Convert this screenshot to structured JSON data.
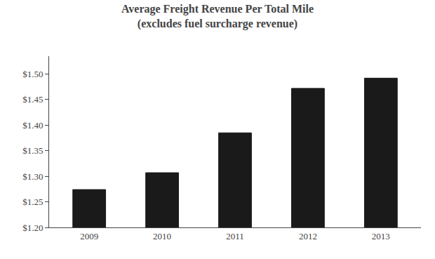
{
  "chart_data": {
    "type": "bar",
    "title": "Average Freight Revenue Per Total Mile",
    "subtitle": "(excludes fuel surcharge revenue)",
    "categories": [
      "2009",
      "2010",
      "2011",
      "2012",
      "2013"
    ],
    "values": [
      1.274,
      1.307,
      1.385,
      1.472,
      1.492
    ],
    "color": "#1a1a1a",
    "ylim": [
      1.2,
      1.535
    ],
    "yticks": [
      {
        "value": 1.2,
        "label": "$1.20"
      },
      {
        "value": 1.25,
        "label": "$1.25"
      },
      {
        "value": 1.3,
        "label": "$1.30"
      },
      {
        "value": 1.35,
        "label": "$1.35"
      },
      {
        "value": 1.4,
        "label": "$1.40"
      },
      {
        "value": 1.45,
        "label": "$1.45"
      },
      {
        "value": 1.5,
        "label": "$1.50"
      }
    ],
    "grid": false
  }
}
